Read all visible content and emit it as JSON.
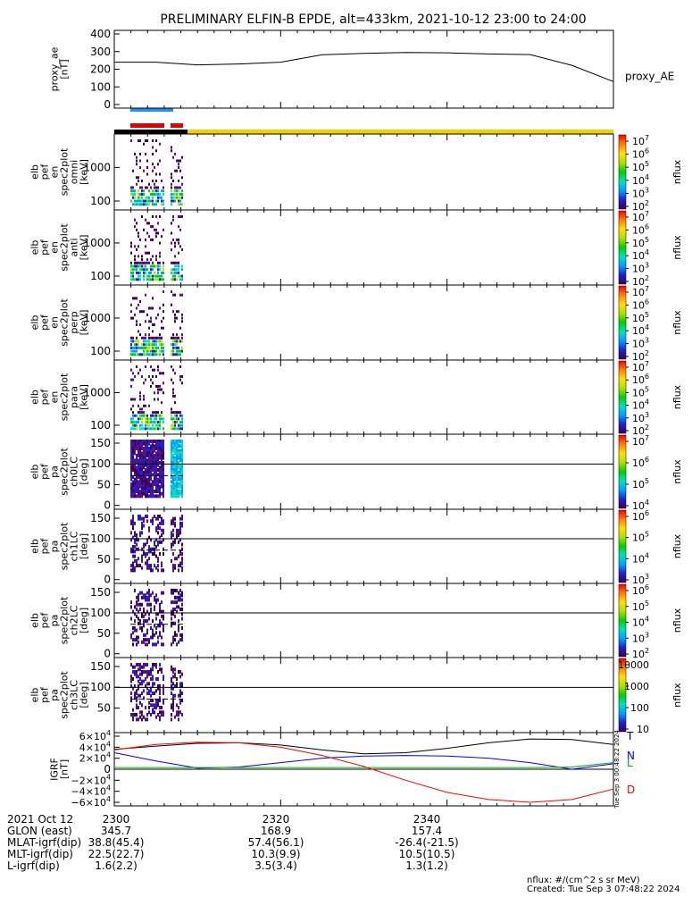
{
  "title": "PRELIMINARY ELFIN-B EPDE, alt=433km, 2021-10-12 23:00 to 24:00",
  "chart_data": [
    {
      "type": "line",
      "ylabel": [
        "proxy_ae",
        "[nT]"
      ],
      "yticks": [
        "400",
        "300",
        "200",
        "100",
        "0"
      ],
      "ylim": [
        0,
        400
      ],
      "legend": "proxy_AE",
      "x_min": [
        0,
        5,
        10,
        15,
        20,
        25,
        30,
        35,
        40,
        45,
        50,
        55,
        60
      ],
      "values": [
        240,
        240,
        225,
        230,
        240,
        282,
        290,
        295,
        293,
        287,
        283,
        222,
        130
      ]
    },
    {
      "type": "heatmap",
      "ylabel": [
        "elb",
        "pef",
        "en",
        "spec2plot",
        "omni",
        "[keV]"
      ],
      "yticks": [
        "1000",
        "100"
      ],
      "cbar_ticks": [
        "10^7",
        "10^6",
        "10^5",
        "10^4",
        "10^3",
        "10^2"
      ],
      "cbar_label": "nflux"
    },
    {
      "type": "heatmap",
      "ylabel": [
        "elb",
        "pef",
        "en",
        "spec2plot",
        "anti",
        "[keV]"
      ],
      "yticks": [
        "1000",
        "100"
      ],
      "cbar_ticks": [
        "10^7",
        "10^6",
        "10^5",
        "10^4",
        "10^3",
        "10^2"
      ],
      "cbar_label": "nflux"
    },
    {
      "type": "heatmap",
      "ylabel": [
        "elb",
        "pef",
        "en",
        "spec2plot",
        "perp",
        "[keV]"
      ],
      "yticks": [
        "1000",
        "100"
      ],
      "cbar_ticks": [
        "10^7",
        "10^6",
        "10^5",
        "10^4",
        "10^3",
        "10^2"
      ],
      "cbar_label": "nflux"
    },
    {
      "type": "heatmap",
      "ylabel": [
        "elb",
        "pef",
        "en",
        "spec2plot",
        "para",
        "[keV]"
      ],
      "yticks": [
        "1000",
        "100"
      ],
      "cbar_ticks": [
        "10^7",
        "10^6",
        "10^5",
        "10^4",
        "10^3",
        "10^2"
      ],
      "cbar_label": "nflux"
    },
    {
      "type": "heatmap",
      "ylabel": [
        "elb",
        "pef",
        "pa",
        "spec2plot",
        "ch0LC",
        "[deg]"
      ],
      "yticks": [
        "150",
        "100",
        "50",
        "0"
      ],
      "cbar_ticks": [
        "10^7",
        "10^6",
        "10^5",
        "10^4"
      ],
      "cbar_label": "nflux"
    },
    {
      "type": "heatmap",
      "ylabel": [
        "elb",
        "pef",
        "pa",
        "spec2plot",
        "ch1LC",
        "[deg]"
      ],
      "yticks": [
        "150",
        "100",
        "50",
        "0"
      ],
      "cbar_ticks": [
        "10^6",
        "10^5",
        "10^4",
        "10^3"
      ],
      "cbar_label": "nflux"
    },
    {
      "type": "heatmap",
      "ylabel": [
        "elb",
        "pef",
        "pa",
        "spec2plot",
        "ch2LC",
        "[deg]"
      ],
      "yticks": [
        "150",
        "100",
        "50",
        "0"
      ],
      "cbar_ticks": [
        "10^6",
        "10^5",
        "10^4",
        "10^3",
        "10^2"
      ],
      "cbar_label": "nflux"
    },
    {
      "type": "heatmap",
      "ylabel": [
        "elb",
        "pef",
        "pa",
        "spec2plot",
        "ch3LC",
        "[deg]"
      ],
      "yticks": [
        "150",
        "100",
        "50"
      ],
      "cbar_ticks": [
        "10000",
        "1000",
        "100",
        "10"
      ],
      "cbar_label": "nflux"
    },
    {
      "type": "line",
      "ylabel": [
        "IGRF",
        "[nT]"
      ],
      "yticks": [
        "6×10^4",
        "4×10^4",
        "2×10^4",
        "0",
        "−2×10^4",
        "−4×10^4",
        "−6×10^4"
      ],
      "ylim": [
        -60000,
        60000
      ],
      "side_text": "Tue Sep  3 00:48:22 2024",
      "series": [
        {
          "name": "T",
          "color": "#000000",
          "x_min": [
            0,
            5,
            10,
            15,
            20,
            25,
            30,
            35,
            40,
            45,
            50,
            55,
            60
          ],
          "values": [
            36000,
            42000,
            47000,
            48000,
            44000,
            35000,
            28000,
            30000,
            38000,
            48000,
            55000,
            54000,
            45000
          ]
        },
        {
          "name": "N",
          "color": "#0000ff",
          "x_min": [
            0,
            5,
            10,
            15,
            20,
            25,
            30,
            35,
            40,
            45,
            50,
            55,
            60
          ],
          "values": [
            30000,
            15000,
            2000,
            4000,
            12000,
            20000,
            24000,
            25000,
            24000,
            20000,
            12000,
            0,
            10000
          ]
        },
        {
          "name": "L",
          "color": "#00b000",
          "x_min": [
            0,
            5,
            10,
            15,
            20,
            25,
            30,
            35,
            40,
            45,
            50,
            55,
            60
          ],
          "values": [
            3000,
            3000,
            3000,
            3000,
            3000,
            3000,
            3000,
            3000,
            3000,
            3000,
            3000,
            4000,
            12000
          ]
        },
        {
          "name": "D",
          "color": "#ff0000",
          "x_min": [
            0,
            5,
            10,
            15,
            20,
            25,
            30,
            35,
            40,
            45,
            50,
            55,
            60
          ],
          "values": [
            35000,
            45000,
            49000,
            48000,
            40000,
            25000,
            5000,
            -20000,
            -42000,
            -55000,
            -60000,
            -55000,
            -36000
          ]
        }
      ]
    }
  ],
  "xaxis": {
    "rows": [
      {
        "label": "2021 Oct 12",
        "values": [
          "2300",
          "2320",
          "2340"
        ]
      },
      {
        "label": "GLON (east)",
        "values": [
          "345.7",
          "168.9",
          "157.4"
        ]
      },
      {
        "label": "MLAT-igrf(dip)",
        "values": [
          "38.8(45.4)",
          "57.4(56.1)",
          "-26.4(-21.5)"
        ]
      },
      {
        "label": "MLT-igrf(dip)",
        "values": [
          "22.5(22.7)",
          "10.3(9.9)",
          "10.5(10.5)"
        ]
      },
      {
        "label": "L-igrf(dip)",
        "values": [
          "1.6(2.2)",
          "3.5(3.4)",
          "1.3(1.2)"
        ]
      }
    ]
  },
  "footer": {
    "line1": "nflux: #/(cm^2 s sr MeV)",
    "line2": "Created: Tue Sep  3 07:48:22 2024"
  }
}
